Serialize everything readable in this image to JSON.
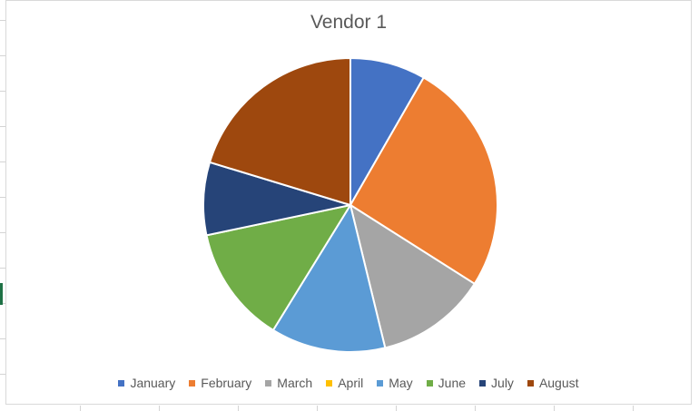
{
  "chart_data": {
    "type": "pie",
    "title": "Vendor 1",
    "categories": [
      "January",
      "February",
      "March",
      "April",
      "May",
      "June",
      "July",
      "August"
    ],
    "values": [
      8.3,
      25.7,
      12.2,
      0,
      12.6,
      12.9,
      8.0,
      20.3
    ],
    "colors": [
      "#4472c4",
      "#ed7d31",
      "#a5a5a5",
      "#ffc000",
      "#5b9bd5",
      "#70ad47",
      "#264478",
      "#9e480e"
    ],
    "legend": "bottom"
  }
}
